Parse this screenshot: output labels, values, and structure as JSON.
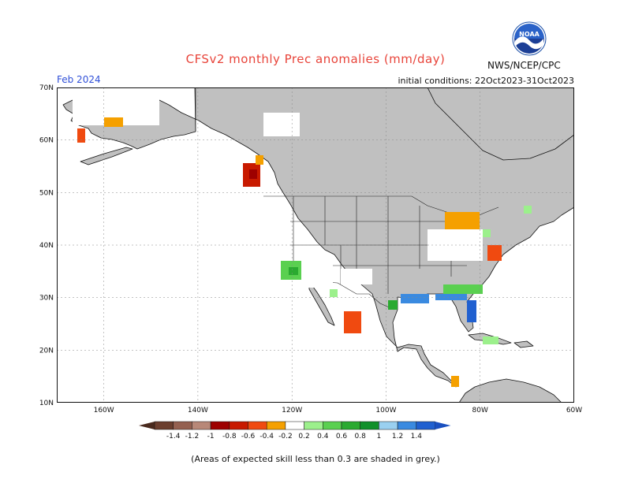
{
  "title": "CFSv2 monthly Prec anomalies (mm/day)",
  "month": "Feb 2024",
  "agency": "NWS/NCEP/CPC",
  "initial_conditions": "initial conditions: 22Oct2023-31Oct2023",
  "logo": {
    "text": "NOAA",
    "icon": "noaa-logo-icon"
  },
  "footnote": "(Areas of expected skill less than 0.3 are shaded in grey.)",
  "map": {
    "lon_range": [
      -170,
      -60
    ],
    "lat_range": [
      10,
      70
    ],
    "lat_labels": [
      "70N",
      "60N",
      "50N",
      "40N",
      "30N",
      "20N",
      "10N"
    ],
    "lon_labels": [
      "160W",
      "140W",
      "120W",
      "100W",
      "80W",
      "60W"
    ],
    "lat_ticks": [
      70,
      60,
      50,
      40,
      30,
      20,
      10
    ],
    "lon_ticks": [
      -160,
      -140,
      -120,
      -100,
      -80,
      -60
    ],
    "colors": {
      "land_grey": "#c0c0c0",
      "ocean": "#ffffff",
      "coast": "#111111",
      "grid": "#888888"
    }
  },
  "colorbar": {
    "labels": [
      "-1.4",
      "-1.2",
      "-1",
      "-0.8",
      "-0.6",
      "-0.4",
      "-0.2",
      "0.2",
      "0.4",
      "0.6",
      "0.8",
      "1",
      "1.2",
      "1.4"
    ],
    "colors": [
      "#6b3e2e",
      "#946050",
      "#b88878",
      "#9e0000",
      "#c81a00",
      "#f04a10",
      "#f5a000",
      "#ffffff",
      "#9cf08c",
      "#5ad050",
      "#2aaa30",
      "#10902a",
      "#9ad0f0",
      "#3a8ae0",
      "#2060d0"
    ]
  }
}
